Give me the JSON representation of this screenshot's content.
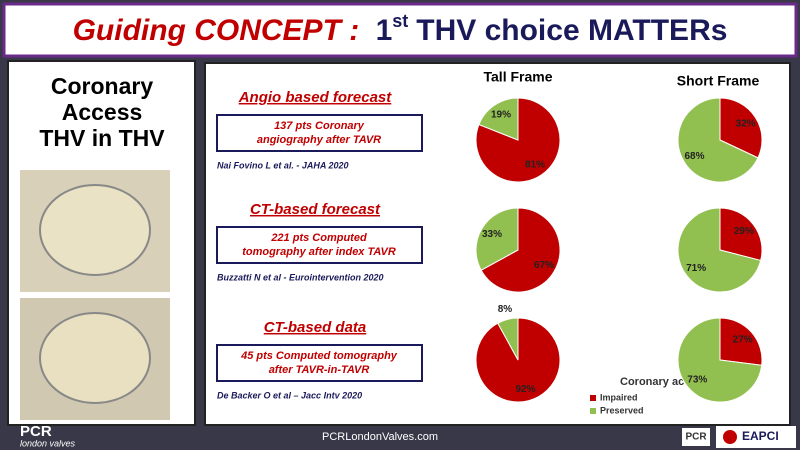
{
  "title": {
    "part1": "Guiding CONCEPT :",
    "part2": "1",
    "sup": "st",
    "part3": "THV choice MATTERs"
  },
  "left_panel": {
    "lines": [
      "Coronary",
      "Access",
      "THV in THV"
    ]
  },
  "columns": [
    "Tall Frame",
    "Short Frame"
  ],
  "rows": [
    {
      "heading": "Angio based forecast",
      "box": [
        "137 pts Coronary",
        "angiography after TAVR"
      ],
      "citation": "Nai Fovino L  et al. - JAHA 2020"
    },
    {
      "heading": "CT-based forecast",
      "box": [
        "221 pts Computed",
        "tomography after index TAVR"
      ],
      "citation": "Buzzatti N et al - Eurointervention 2020"
    },
    {
      "heading": "CT-based data",
      "box": [
        "45 pts Computed tomography",
        "after TAVR-in-TAVR"
      ],
      "citation": "De Backer O et al – Jacc Intv 2020"
    }
  ],
  "legend_title": "Coronary access",
  "footer": {
    "url": "PCRLondonValves.com",
    "logo_left": "PCR",
    "logo_left_sub": "london valves",
    "logo_pcr": "PCR",
    "logo_eapci": "EAPCI"
  },
  "chart_data": [
    {
      "type": "pie",
      "categories": [
        "Impaired",
        "Preserved"
      ],
      "values": [
        81,
        19
      ],
      "value_labels": [
        "81%",
        "19%"
      ],
      "colors": [
        "#c00000",
        "#92c050"
      ]
    },
    {
      "type": "pie",
      "categories": [
        "Impaired",
        "Preserved"
      ],
      "values": [
        32,
        68
      ],
      "value_labels": [
        "32%",
        "68%"
      ],
      "colors": [
        "#c00000",
        "#92c050"
      ]
    },
    {
      "type": "pie",
      "categories": [
        "Impaired",
        "Preserved"
      ],
      "values": [
        67,
        33
      ],
      "value_labels": [
        "67%",
        "33%"
      ],
      "colors": [
        "#c00000",
        "#92c050"
      ]
    },
    {
      "type": "pie",
      "categories": [
        "Impaired",
        "Preserved"
      ],
      "values": [
        29,
        71
      ],
      "value_labels": [
        "29%",
        "71%"
      ],
      "colors": [
        "#c00000",
        "#92c050"
      ]
    },
    {
      "type": "pie",
      "categories": [
        "Impaired",
        "Preserved"
      ],
      "values": [
        92,
        8
      ],
      "value_labels": [
        "92%",
        "8%"
      ],
      "colors": [
        "#c00000",
        "#92c050"
      ]
    },
    {
      "type": "pie",
      "categories": [
        "Impaired",
        "Preserved"
      ],
      "values": [
        27,
        73
      ],
      "value_labels": [
        "27%",
        "73%"
      ],
      "colors": [
        "#c00000",
        "#92c050"
      ]
    }
  ]
}
